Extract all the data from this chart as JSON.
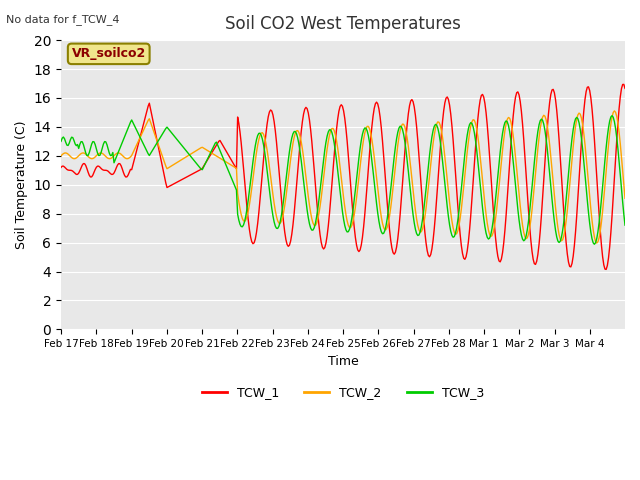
{
  "title": "Soil CO2 West Temperatures",
  "xlabel": "Time",
  "ylabel": "Soil Temperature (C)",
  "no_data_text": "No data for f_TCW_4",
  "legend_label": "VR_soilco2",
  "ylim": [
    0,
    20
  ],
  "yticks": [
    0,
    2,
    4,
    6,
    8,
    10,
    12,
    14,
    16,
    18,
    20
  ],
  "x_tick_labels": [
    "Feb 17",
    "Feb 18",
    "Feb 19",
    "Feb 20",
    "Feb 21",
    "Feb 22",
    "Feb 23",
    "Feb 24",
    "Feb 25",
    "Feb 26",
    "Feb 27",
    "Feb 28",
    "Mar 1",
    "Mar 2",
    "Mar 3",
    "Mar 4"
  ],
  "line_colors": {
    "TCW_1": "#ff0000",
    "TCW_2": "#ffa500",
    "TCW_3": "#00cc00"
  },
  "legend_entries": [
    "TCW_1",
    "TCW_2",
    "TCW_3"
  ],
  "bg_color": "#e8e8e8",
  "box_color": "#f0e68c",
  "box_text_color": "#8b0000",
  "title_color": "#333333",
  "no_data_color": "#333333"
}
